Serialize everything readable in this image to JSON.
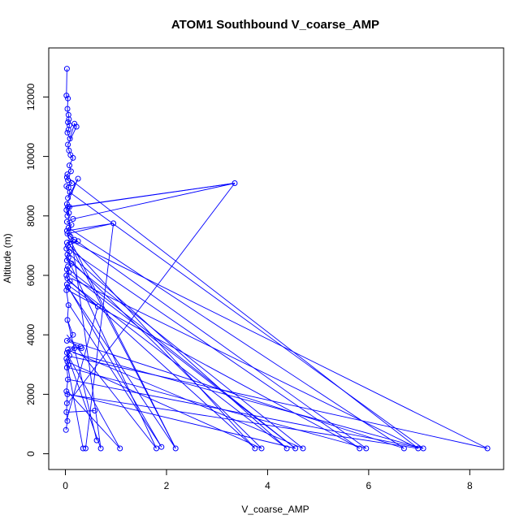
{
  "chart_data": {
    "type": "line",
    "title": "ATOM1 Southbound V_coarse_AMP",
    "xlabel": "V_coarse_AMP",
    "ylabel": "Altitude (m)",
    "xlim": [
      -0.33,
      8.67
    ],
    "ylim": [
      -530,
      13650
    ],
    "xticks": [
      0,
      2,
      4,
      6,
      8
    ],
    "yticks": [
      0,
      2000,
      4000,
      6000,
      8000,
      10000,
      12000
    ],
    "grid": false,
    "legend": "none",
    "series_color": "#0000ff",
    "series": [
      {
        "x": [
          0.03,
          0.02,
          0.05,
          0.04,
          0.06,
          0.07,
          0.05,
          0.08,
          0.06,
          0.04,
          0.09,
          0.18,
          0.22,
          0.05,
          0.07,
          0.1,
          0.15,
          0.08,
          0.11,
          0.04,
          0.03,
          0.05,
          0.13,
          0.02,
          0.06,
          0.09,
          0.05,
          0.25,
          0.03,
          0.05,
          0.02,
          0.07,
          0.04,
          0.08,
          3.35,
          0.15,
          0.03,
          0.12,
          0.06,
          0.03,
          0.95,
          0.04,
          0.1,
          0.18,
          0.03,
          0.25,
          0.05,
          0.02,
          0.08,
          0.04,
          0.06,
          0.03,
          0.12,
          0.05,
          0.03,
          0.07,
          0.02,
          0.04,
          0.09,
          0.64,
          0.03,
          0.05,
          0.02,
          0.06,
          0.04,
          0.15,
          0.03,
          0.3,
          0.05,
          0.03,
          0.08,
          0.02,
          0.04,
          0.06,
          0.03,
          0.05,
          0.02,
          0.04,
          0.03,
          0.02,
          0.04,
          0.01
        ],
        "y": [
          12950,
          12050,
          11950,
          11600,
          11400,
          11250,
          11150,
          11050,
          10900,
          10800,
          10600,
          11100,
          11000,
          10400,
          10200,
          10050,
          9950,
          9700,
          9500,
          9400,
          9300,
          9200,
          9100,
          9000,
          8950,
          8800,
          8600,
          9250,
          8400,
          8300,
          8200,
          8100,
          8000,
          8300,
          9100,
          7900,
          7800,
          7700,
          7600,
          7500,
          7750,
          7400,
          7300,
          7200,
          7100,
          7150,
          7000,
          6900,
          6800,
          6700,
          6600,
          6500,
          6400,
          6300,
          6200,
          6100,
          6000,
          5900,
          5800,
          4950,
          5700,
          5600,
          5500,
          5000,
          4500,
          4000,
          3800,
          3600,
          3500,
          3400,
          3300,
          3200,
          3100,
          3000,
          2900,
          2500,
          2100,
          2000,
          1700,
          1400,
          1100,
          800
        ]
      }
    ],
    "low_altitude_points": {
      "x": [
        0.35,
        0.4,
        0.7,
        1.08,
        1.8,
        1.9,
        2.18,
        3.75,
        3.88,
        4.38,
        4.55,
        4.7,
        5.82,
        5.95,
        6.7,
        6.98,
        7.08,
        8.35,
        0.62,
        0.58,
        0.32,
        0.18
      ],
      "y": [
        180,
        180,
        180,
        180,
        180,
        230,
        180,
        180,
        180,
        180,
        180,
        180,
        180,
        180,
        180,
        180,
        180,
        180,
        450,
        1450,
        3550,
        3550
      ]
    },
    "connections": [
      [
        0.05,
        7200,
        8.35,
        180
      ],
      [
        0.08,
        8800,
        7.08,
        180
      ],
      [
        0.04,
        9300,
        6.98,
        180
      ],
      [
        0.06,
        7600,
        6.7,
        180
      ],
      [
        0.1,
        7300,
        5.95,
        180
      ],
      [
        0.05,
        6900,
        5.82,
        180
      ],
      [
        0.12,
        6400,
        4.7,
        180
      ],
      [
        0.05,
        6100,
        4.55,
        180
      ],
      [
        0.07,
        5800,
        4.38,
        180
      ],
      [
        0.04,
        6600,
        3.88,
        180
      ],
      [
        0.03,
        5900,
        3.75,
        180
      ],
      [
        0.05,
        5600,
        2.18,
        180
      ],
      [
        0.08,
        5000,
        1.9,
        230
      ],
      [
        0.03,
        4000,
        1.8,
        180
      ],
      [
        0.02,
        3400,
        1.08,
        180
      ],
      [
        0.95,
        7750,
        0.4,
        180
      ],
      [
        0.04,
        3000,
        0.35,
        180
      ],
      [
        0.06,
        3200,
        0.7,
        180
      ],
      [
        0.03,
        8300,
        3.35,
        9100
      ],
      [
        3.35,
        9100,
        0.05,
        1700
      ],
      [
        0.64,
        4950,
        0.02,
        1100
      ],
      [
        0.04,
        4500,
        0.62,
        450
      ],
      [
        0.05,
        2500,
        7.08,
        180
      ],
      [
        0.03,
        2000,
        6.98,
        180
      ],
      [
        0.02,
        3300,
        8.35,
        180
      ],
      [
        0.06,
        2900,
        5.95,
        180
      ],
      [
        0.04,
        3500,
        4.7,
        180
      ],
      [
        0.03,
        3100,
        3.88,
        180
      ],
      [
        0.08,
        3800,
        6.7,
        180
      ],
      [
        0.05,
        5500,
        5.82,
        180
      ],
      [
        0.07,
        6200,
        4.55,
        180
      ],
      [
        0.09,
        6700,
        4.38,
        180
      ],
      [
        0.04,
        7100,
        3.75,
        180
      ],
      [
        0.1,
        7000,
        2.18,
        180
      ],
      [
        0.02,
        5700,
        1.9,
        230
      ],
      [
        0.06,
        6500,
        1.8,
        180
      ],
      [
        0.03,
        1400,
        0.58,
        1450
      ],
      [
        0.05,
        3600,
        0.32,
        3550
      ],
      [
        0.02,
        3300,
        0.18,
        3550
      ],
      [
        0.15,
        3400,
        7.08,
        180
      ],
      [
        0.12,
        5900,
        6.98,
        180
      ],
      [
        0.04,
        2100,
        1.08,
        180
      ],
      [
        0.06,
        8000,
        0.7,
        180
      ],
      [
        0.03,
        7400,
        2.18,
        180
      ],
      [
        0.08,
        2000,
        4.55,
        180
      ]
    ]
  }
}
